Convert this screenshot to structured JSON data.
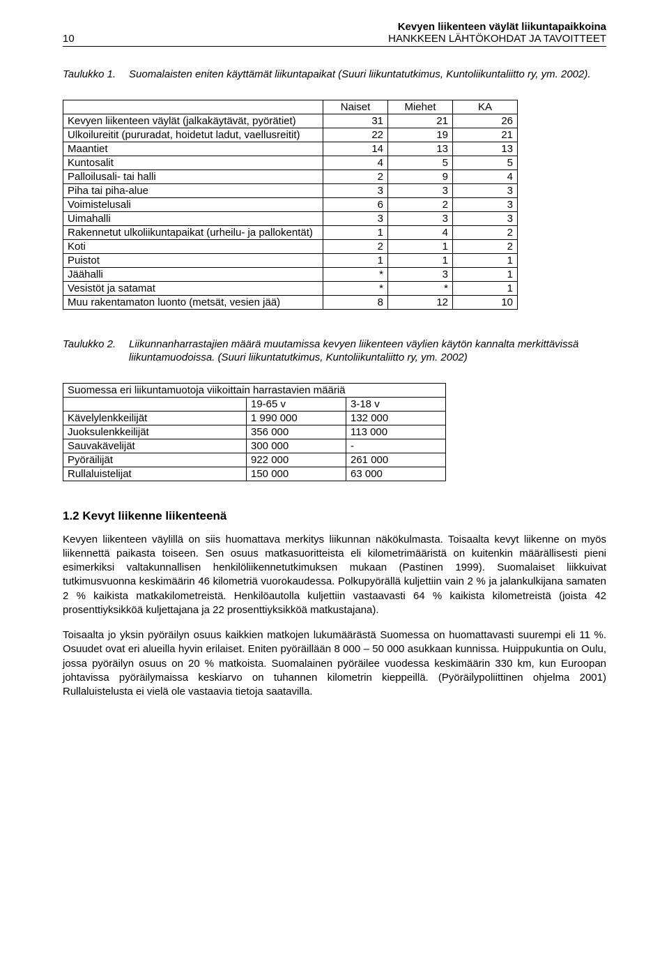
{
  "page": {
    "number": "10",
    "header_bold": "Kevyen liikenteen väylät liikuntapaikkoina",
    "header_sub": "HANKKEEN LÄHTÖKOHDAT JA TAVOITTEET"
  },
  "table1": {
    "caption_label": "Taulukko 1.",
    "caption_text": "Suomalaisten eniten käyttämät liikuntapaikat (Suuri liikuntatutkimus, Kuntoliikuntaliitto ry, ym. 2002).",
    "columns": [
      "",
      "Naiset",
      "Miehet",
      "KA"
    ],
    "rows": [
      [
        "Kevyen liikenteen väylät (jalkakäytävät, pyörätiet)",
        "31",
        "21",
        "26"
      ],
      [
        "Ulkoilureitit (pururadat, hoidetut ladut, vaellusreitit)",
        "22",
        "19",
        "21"
      ],
      [
        "Maantiet",
        "14",
        "13",
        "13"
      ],
      [
        "Kuntosalit",
        "4",
        "5",
        "5"
      ],
      [
        "Palloilusali- tai halli",
        "2",
        "9",
        "4"
      ],
      [
        "Piha tai piha-alue",
        "3",
        "3",
        "3"
      ],
      [
        "Voimistelusali",
        "6",
        "2",
        "3"
      ],
      [
        "Uimahalli",
        "3",
        "3",
        "3"
      ],
      [
        "Rakennetut ulkoliikuntapaikat (urheilu- ja pallokentät)",
        "1",
        "4",
        "2"
      ],
      [
        "Koti",
        "2",
        "1",
        "2"
      ],
      [
        "Puistot",
        "1",
        "1",
        "1"
      ],
      [
        "Jäähalli",
        "*",
        "3",
        "1"
      ],
      [
        "Vesistöt ja satamat",
        "*",
        "*",
        "1"
      ],
      [
        "Muu rakentamaton luonto (metsät, vesien jää)",
        "8",
        "12",
        "10"
      ]
    ]
  },
  "table2": {
    "caption_label": "Taulukko 2.",
    "caption_text": "Liikunnanharrastajien määrä muutamissa kevyen liikenteen väylien käytön kannalta merkittävissä liikuntamuodoissa. (Suuri liikuntatutkimus, Kuntoliikuntaliitto ry, ym. 2002)",
    "title": "Suomessa eri liikuntamuotoja viikoittain harrastavien määriä",
    "columns": [
      "",
      "19-65 v",
      "3-18 v"
    ],
    "rows": [
      [
        "Kävelylenkkeilijät",
        "1 990 000",
        "132 000"
      ],
      [
        "Juoksulenkkeilijät",
        "356 000",
        "113 000"
      ],
      [
        "Sauvakävelijät",
        "300 000",
        "-"
      ],
      [
        "Pyöräilijät",
        "922 000",
        "261 000"
      ],
      [
        "Rullaluistelijat",
        "150 000",
        "63 000"
      ]
    ]
  },
  "section": {
    "number_title": "1.2   Kevyt liikenne liikenteenä",
    "p1": "Kevyen liikenteen väylillä on siis huomattava merkitys liikunnan näkökulmasta. Toisaalta kevyt liikenne on myös liikennettä paikasta toiseen. Sen osuus matkasuoritteista eli kilometrimääristä on kuitenkin määrällisesti pieni esimerkiksi valtakunnallisen henkilöliikennetutkimuksen mukaan (Pastinen 1999). Suomalaiset liikkuivat tutkimusvuonna keskimäärin 46 kilometriä vuorokaudessa. Polkupyörällä kuljettiin vain 2 % ja jalankulkijana samaten 2 % kaikista matkakilometreistä. Henkilöautolla kuljettiin vastaavasti 64 % kaikista kilometreistä (joista 42 prosenttiyksikköä kuljettajana ja 22 prosenttiyksikköä matkustajana).",
    "p2": "Toisaalta jo yksin pyöräilyn osuus kaikkien matkojen lukumäärästä Suomessa on huomattavasti suurempi eli 11 %. Osuudet ovat eri alueilla hyvin erilaiset. Eniten pyöräillään 8 000 – 50 000 asukkaan kunnissa. Huippukuntia on Oulu, jossa pyöräilyn osuus on 20 % matkoista. Suomalainen pyöräilee vuodessa keskimäärin 330 km, kun Euroopan johtavissa pyöräilymaissa keskiarvo on tuhannen kilometrin kieppeillä. (Pyöräilypoliittinen ohjelma 2001) Rullaluistelusta ei vielä ole vastaavia tietoja saatavilla."
  }
}
